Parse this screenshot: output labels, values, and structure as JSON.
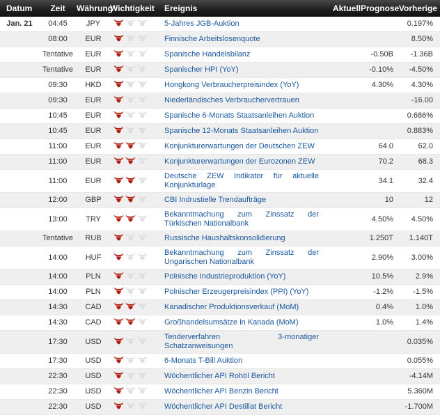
{
  "table": {
    "columns": [
      "Datum",
      "Zeit",
      "Währung",
      "Wichtigkeit",
      "Ereignis",
      "Aktuell",
      "Prognose",
      "Vorherige"
    ]
  },
  "colors": {
    "header_bg": "#222222",
    "row_alt": "#efefef",
    "event_link": "#19579e",
    "bull_active": "#b21b10",
    "bull_inactive": "#dddddd",
    "text": "#333333"
  },
  "icons": {
    "importance": "bull-icon"
  },
  "rows": [
    {
      "date": "Jan. 21",
      "time": "04:45",
      "currency": "JPY",
      "importance": 1,
      "event": "5-Jahres JGB-Auktion",
      "actual": "",
      "forecast": "",
      "previous": "0.197%"
    },
    {
      "date": "",
      "time": "08:00",
      "currency": "EUR",
      "importance": 1,
      "event": "Finnische Arbeitslosenquote",
      "actual": "",
      "forecast": "",
      "previous": "8.50%"
    },
    {
      "date": "",
      "time": "Tentative",
      "currency": "EUR",
      "importance": 1,
      "event": "Spanische Handelsbilanz",
      "actual": "",
      "forecast": "-0.50B",
      "previous": "-1.36B"
    },
    {
      "date": "",
      "time": "Tentative",
      "currency": "EUR",
      "importance": 1,
      "event": "Spanischer HPI (YoY)",
      "actual": "",
      "forecast": "-0.10%",
      "previous": "-4.50%"
    },
    {
      "date": "",
      "time": "09:30",
      "currency": "HKD",
      "importance": 1,
      "event": "Hongkong Verbraucherpreisindex (YoY)",
      "actual": "",
      "forecast": "4.30%",
      "previous": "4.30%"
    },
    {
      "date": "",
      "time": "09:30",
      "currency": "EUR",
      "importance": 1,
      "event": "Niederländisches Verbrauchervertrauen",
      "actual": "",
      "forecast": "",
      "previous": "-16.00"
    },
    {
      "date": "",
      "time": "10:45",
      "currency": "EUR",
      "importance": 1,
      "event": "Spanische 6-Monats Staatsanleihen Auktion",
      "actual": "",
      "forecast": "",
      "previous": "0.686%"
    },
    {
      "date": "",
      "time": "10:45",
      "currency": "EUR",
      "importance": 1,
      "event": "Spanische 12-Monats Staatsanleihen Auktion",
      "actual": "",
      "forecast": "",
      "previous": "0.883%"
    },
    {
      "date": "",
      "time": "11:00",
      "currency": "EUR",
      "importance": 2,
      "event": "Konjunkturerwartungen der Deutschen ZEW",
      "actual": "",
      "forecast": "64.0",
      "previous": "62.0"
    },
    {
      "date": "",
      "time": "11:00",
      "currency": "EUR",
      "importance": 2,
      "event": "Konjunkturerwartungen der Eurozonen ZEW",
      "actual": "",
      "forecast": "70.2",
      "previous": "68.3"
    },
    {
      "date": "",
      "time": "11:00",
      "currency": "EUR",
      "importance": 2,
      "event": "Deutsche ZEW Indikator für aktuelle Konjunkturlage",
      "actual": "",
      "forecast": "34.1",
      "previous": "32.4"
    },
    {
      "date": "",
      "time": "12:00",
      "currency": "GBP",
      "importance": 2,
      "event": "CBI Indrustielle Trendaufträge",
      "actual": "",
      "forecast": "10",
      "previous": "12"
    },
    {
      "date": "",
      "time": "13:00",
      "currency": "TRY",
      "importance": 2,
      "event": "Bekanntmachung zum Zinssatz der Türkischen Nationalbank",
      "actual": "",
      "forecast": "4.50%",
      "previous": "4.50%"
    },
    {
      "date": "",
      "time": "Tentative",
      "currency": "RUB",
      "importance": 1,
      "event": "Russische Haushaltskonsolidierung",
      "actual": "",
      "forecast": "1.250T",
      "previous": "1.140T"
    },
    {
      "date": "",
      "time": "14:00",
      "currency": "HUF",
      "importance": 1,
      "event": "Bekanntmachung zum Zinssatz der Ungarischen Nationalbank",
      "actual": "",
      "forecast": "2.90%",
      "previous": "3.00%"
    },
    {
      "date": "",
      "time": "14:00",
      "currency": "PLN",
      "importance": 1,
      "event": "Polnische Industrieproduktion (YoY)",
      "actual": "",
      "forecast": "10.5%",
      "previous": "2.9%"
    },
    {
      "date": "",
      "time": "14:00",
      "currency": "PLN",
      "importance": 1,
      "event": "Polnischer Erzeugerpreisindex (PPI) (YoY)",
      "actual": "",
      "forecast": "-1.2%",
      "previous": "-1.5%"
    },
    {
      "date": "",
      "time": "14:30",
      "currency": "CAD",
      "importance": 2,
      "event": "Kanadischer Produktionsverkauf (MoM)",
      "actual": "",
      "forecast": "0.4%",
      "previous": "1.0%"
    },
    {
      "date": "",
      "time": "14:30",
      "currency": "CAD",
      "importance": 2,
      "event": "Großhandelsumsätze in Kanada (MoM)",
      "actual": "",
      "forecast": "1.0%",
      "previous": "1.4%"
    },
    {
      "date": "",
      "time": "17:30",
      "currency": "USD",
      "importance": 1,
      "event": "Tenderverfahren 3-monatiger Schatzanweisungen",
      "actual": "",
      "forecast": "",
      "previous": "0.035%"
    },
    {
      "date": "",
      "time": "17:30",
      "currency": "USD",
      "importance": 1,
      "event": "6-Monats T-Bill Auktion",
      "actual": "",
      "forecast": "",
      "previous": "0.055%"
    },
    {
      "date": "",
      "time": "22:30",
      "currency": "USD",
      "importance": 1,
      "event": "Wöchentlicher API Rohöl Bericht",
      "actual": "",
      "forecast": "",
      "previous": "-4.14M"
    },
    {
      "date": "",
      "time": "22:30",
      "currency": "USD",
      "importance": 1,
      "event": "Wöchentlicher API Benzin Bericht",
      "actual": "",
      "forecast": "",
      "previous": "5.360M"
    },
    {
      "date": "",
      "time": "22:30",
      "currency": "USD",
      "importance": 1,
      "event": "Wöchentlicher API Destillat Bericht",
      "actual": "",
      "forecast": "",
      "previous": "-1.700M"
    }
  ]
}
